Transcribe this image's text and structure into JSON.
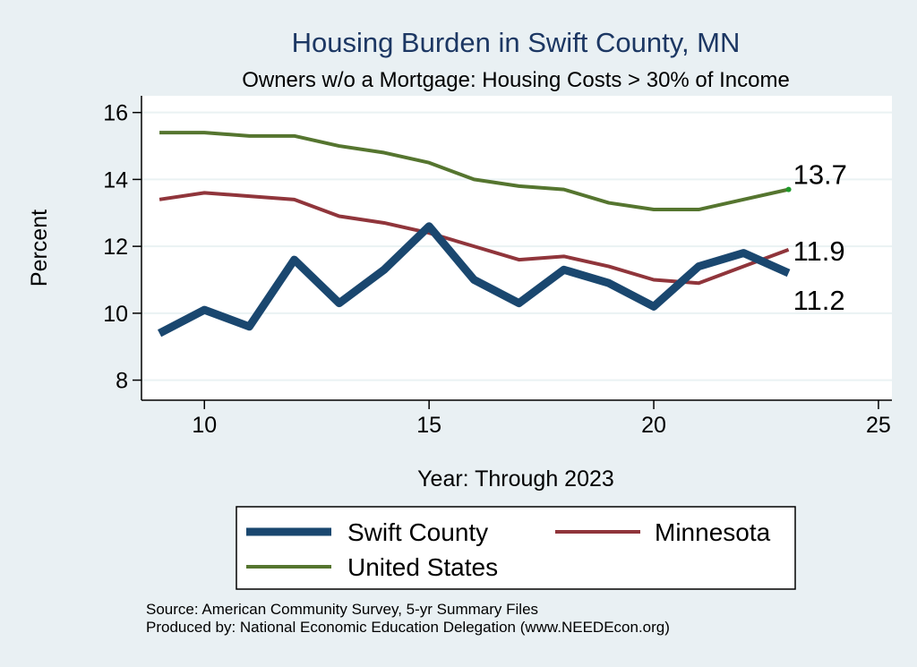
{
  "chart_data": {
    "type": "line",
    "title": "Housing Burden in Swift County, MN",
    "subtitle": "Owners w/o a Mortgage: Housing Costs > 30% of Income",
    "xlabel": "Year: Through 2023",
    "ylabel": "Percent",
    "xlim": [
      8.6,
      25.3
    ],
    "ylim": [
      7.4,
      16.5
    ],
    "xticks": [
      10,
      15,
      20,
      25
    ],
    "yticks": [
      8,
      10,
      12,
      14,
      16
    ],
    "grid": true,
    "x": [
      9,
      10,
      11,
      12,
      13,
      14,
      15,
      16,
      17,
      18,
      19,
      20,
      21,
      22,
      23
    ],
    "series": [
      {
        "name": "Swift County",
        "color": "#1a476f",
        "values": [
          9.4,
          10.1,
          9.6,
          11.6,
          10.3,
          11.3,
          12.6,
          11.0,
          10.3,
          11.3,
          10.9,
          10.2,
          11.4,
          11.8,
          11.2
        ],
        "end_label": "11.2"
      },
      {
        "name": "Minnesota",
        "color": "#90353b",
        "values": [
          13.4,
          13.6,
          13.5,
          13.4,
          12.9,
          12.7,
          12.4,
          12.0,
          11.6,
          11.7,
          11.4,
          11.0,
          10.9,
          11.4,
          11.9
        ],
        "end_label": "11.9"
      },
      {
        "name": "United States",
        "color": "#55752f",
        "values": [
          15.4,
          15.4,
          15.3,
          15.3,
          15.0,
          14.8,
          14.5,
          14.0,
          13.8,
          13.7,
          13.3,
          13.1,
          13.1,
          13.4,
          13.7
        ],
        "end_label": "13.7"
      }
    ],
    "legend": {
      "position": "bottom",
      "entries": [
        "Swift County",
        "Minnesota",
        "United States"
      ]
    },
    "notes": [
      "Source: American Community Survey, 5-yr Summary Files",
      "Produced by: National Economic Education Delegation (www.NEEDEcon.org)"
    ]
  }
}
